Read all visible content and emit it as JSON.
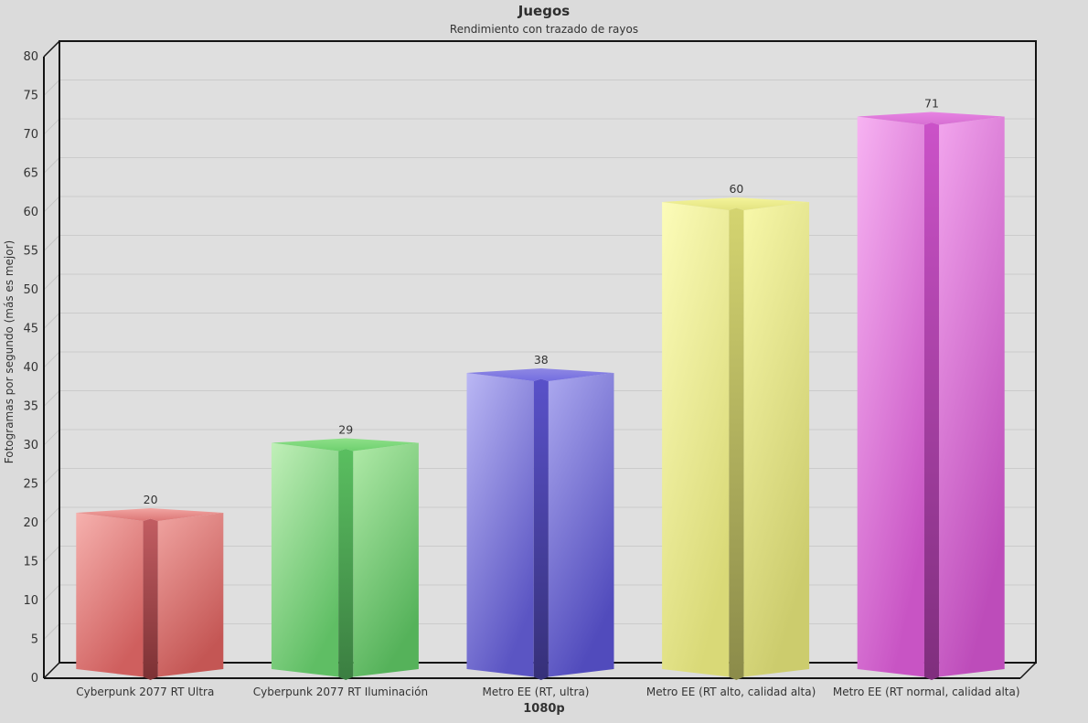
{
  "page": {
    "background": "#dbdbdb",
    "plot_background": "#dfdfdf",
    "grid_color": "#cbcbcb",
    "side_grid_color": "#c6c6c6",
    "frame_color": "#141414",
    "text_color": "#333333"
  },
  "chart_data": {
    "type": "bar",
    "style": "3d-star-columns",
    "title": "Juegos",
    "subtitle": "Rendimiento con trazado de rayos",
    "ylabel": "Fotogramas por segundo (más es mejor)",
    "xlabel": "1080p",
    "ylim": [
      0,
      80
    ],
    "ytick_step": 5,
    "grid": "horizontal",
    "legend": "none",
    "categories": [
      "Cyberpunk 2077 RT Ultra",
      "Cyberpunk 2077 RT Iluminación",
      "Metro EE (RT, ultra)",
      "Metro EE (RT alto, calidad alta)",
      "Metro EE (RT normal, calidad alta)"
    ],
    "values": [
      20,
      29,
      38,
      60,
      71
    ],
    "value_labels": [
      "20",
      "29",
      "38",
      "60",
      "71"
    ],
    "bar_colors": [
      {
        "name": "red",
        "face_left": [
          "#f6b1ae",
          "#cf5f5e"
        ],
        "face_right": [
          "#f0a4a1",
          "#c45654"
        ],
        "groove": [
          "#c25d62",
          "#7c3134"
        ],
        "top": [
          "#f2a5a2",
          "#dc7675"
        ]
      },
      {
        "name": "green",
        "face_left": [
          "#c0efb8",
          "#5fbe64"
        ],
        "face_right": [
          "#b0eaa8",
          "#55b25a"
        ],
        "groove": [
          "#5abf60",
          "#3b7e41"
        ],
        "top": [
          "#8ee089",
          "#6ed06e"
        ]
      },
      {
        "name": "blue",
        "face_left": [
          "#bab7f4",
          "#5b55c3"
        ],
        "face_right": [
          "#aca9ef",
          "#514bbc"
        ],
        "groove": [
          "#5951c9",
          "#363079"
        ],
        "top": [
          "#8e88e4",
          "#746de0"
        ]
      },
      {
        "name": "yellow",
        "face_left": [
          "#fcfcb9",
          "#d9d977"
        ],
        "face_right": [
          "#f8f8aa",
          "#cccc6d"
        ],
        "groove": [
          "#d4d470",
          "#8b8b4a"
        ],
        "top": [
          "#f4f49b",
          "#e3e380"
        ]
      },
      {
        "name": "magenta",
        "face_left": [
          "#f7b3f2",
          "#c854c4"
        ],
        "face_right": [
          "#f2a5ed",
          "#bd4cba"
        ],
        "groove": [
          "#cb52c8",
          "#7f2e7d"
        ],
        "top": [
          "#e783e2",
          "#d76fd3"
        ]
      }
    ]
  }
}
